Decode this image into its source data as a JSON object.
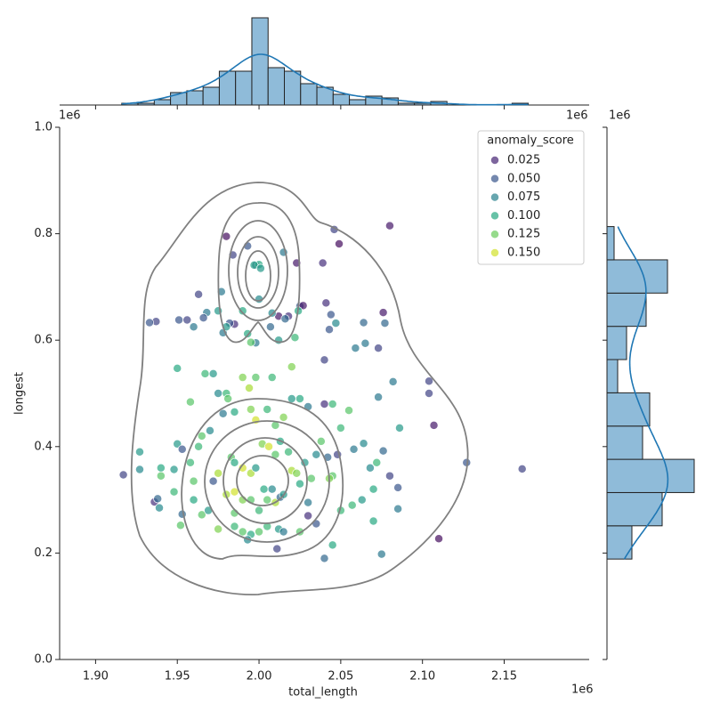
{
  "chart_data": {
    "type": "scatter",
    "xlabel": "total_length",
    "ylabel": "longest",
    "x_offset_label": "1e6",
    "y_offset_label": "1e6",
    "xlim": [
      1878000.0,
      2202000.0
    ],
    "ylim": [
      0,
      1000000.0
    ],
    "xticks": [
      {
        "value": 1900000.0,
        "label": "1.90"
      },
      {
        "value": 1950000.0,
        "label": "1.95"
      },
      {
        "value": 2000000.0,
        "label": "2.00"
      },
      {
        "value": 2050000.0,
        "label": "2.05"
      },
      {
        "value": 2100000.0,
        "label": "2.10"
      },
      {
        "value": 2150000.0,
        "label": "2.15"
      }
    ],
    "yticks": [
      {
        "value": 0,
        "label": "0.0"
      },
      {
        "value": 200000.0,
        "label": "0.2"
      },
      {
        "value": 400000.0,
        "label": "0.4"
      },
      {
        "value": 600000.0,
        "label": "0.6"
      },
      {
        "value": 800000.0,
        "label": "0.8"
      },
      {
        "value": 1000000.0,
        "label": "1.0"
      }
    ],
    "colormap": "viridis",
    "hue_lim": [
      0.01,
      0.16
    ],
    "legend": {
      "title": "anomaly_score",
      "loc": "upper right",
      "entries": [
        {
          "value": 0.025,
          "label": "0.025"
        },
        {
          "value": 0.05,
          "label": "0.050"
        },
        {
          "value": 0.075,
          "label": "0.075"
        },
        {
          "value": 0.1,
          "label": "0.100"
        },
        {
          "value": 0.125,
          "label": "0.125"
        },
        {
          "value": 0.15,
          "label": "0.150"
        }
      ]
    },
    "x": [
      1980000.0,
      1984000.0,
      1993000.0,
      1998000.0,
      2000000.0,
      1997000.0,
      2001000.0,
      2000000.0,
      2015000.0,
      2023000.0,
      2039000.0,
      2046000.0,
      2049000.0,
      2080000.0,
      1963000.0,
      1977000.0,
      1951000.0,
      1956000.0,
      1937000.0,
      1933000.0,
      1968000.0,
      1975000.0,
      1990000.0,
      1985000.0,
      1982000.0,
      1978000.0,
      1980000.0,
      2012000.0,
      2018000.0,
      2025000.0,
      2027000.0,
      2008000.0,
      2016000.0,
      2024000.0,
      2041000.0,
      2044000.0,
      2047000.0,
      2043000.0,
      2040000.0,
      2059000.0,
      2064000.0,
      2065000.0,
      2073000.0,
      2076000.0,
      2077000.0,
      2104000.0,
      2104000.0,
      2107000.0,
      2110000.0,
      2127000.0,
      2161000.0,
      1917000.0,
      1936000.0,
      1938000.0,
      1939000.0,
      1998000.0,
      1993000.0,
      1995000.0,
      2007000.0,
      2012000.0,
      2022000.0,
      2020000.0,
      1980000.0,
      1975000.0,
      1972000.0,
      1967000.0,
      1958000.0,
      1950000.0,
      1998000.0,
      2008000.0,
      1990000.0,
      1994000.0,
      1981000.0,
      1985000.0,
      1978000.0,
      1970000.0,
      1965000.0,
      1963000.0,
      1950000.0,
      1940000.0,
      1927000.0,
      1927000.0,
      1948000.0,
      1953000.0,
      1958000.0,
      1960000.0,
      1960000.0,
      1953000.0,
      1952000.0,
      1948000.0,
      1975000.0,
      1965000.0,
      1969000.0,
      1972000.0,
      1975000.0,
      1983000.0,
      1985000.0,
      1990000.0,
      1995000.0,
      1998000.0,
      2002000.0,
      2006000.0,
      2010000.0,
      2013000.0,
      2018000.0,
      2020000.0,
      2023000.0,
      2025000.0,
      2028000.0,
      2032000.0,
      2035000.0,
      2038000.0,
      2042000.0,
      2045000.0,
      2043000.0,
      1980000.0,
      1985000.0,
      1990000.0,
      1995000.0,
      2000000.0,
      2005000.0,
      2010000.0,
      2003000.0,
      2008000.0,
      2013000.0,
      2015000.0,
      1985000.0,
      1990000.0,
      1995000.0,
      1993000.0,
      2005000.0,
      2000000.0,
      2012000.0,
      2025000.0,
      2030000.0,
      2035000.0,
      2040000.0,
      2045000.0,
      2050000.0,
      2057000.0,
      2063000.0,
      2070000.0,
      2075000.0,
      2085000.0,
      2085000.0,
      2070000.0,
      2068000.0,
      2072000.0,
      2058000.0,
      2064000.0,
      2076000.0,
      2080000.0,
      2086000.0,
      2082000.0,
      2073000.0,
      2055000.0,
      2050000.0,
      2045000.0,
      2040000.0,
      2030000.0,
      2025000.0,
      2020000.0,
      2015000.0,
      2010000.0,
      2005000.0,
      1998000.0,
      1995000.0,
      2048000.0,
      2030000.0,
      2011000.0,
      2015000.0,
      1960000.0,
      1966000.0,
      1985000.0,
      1940000.0
    ],
    "y": [
      795000.0,
      760000.0,
      777000.0,
      741000.0,
      742000.0,
      741000.0,
      735000.0,
      677000.0,
      765000.0,
      745000.0,
      745000.0,
      808000.0,
      781000.0,
      815000.0,
      686000.0,
      691000.0,
      638000.0,
      638000.0,
      635000.0,
      633000.0,
      652000.0,
      655000.0,
      655000.0,
      630000.0,
      632000.0,
      614000.0,
      625000.0,
      645000.0,
      645000.0,
      664000.0,
      665000.0,
      651000.0,
      640000.0,
      655000.0,
      670000.0,
      648000.0,
      632000.0,
      620000.0,
      563000.0,
      585000.0,
      633000.0,
      594000.0,
      585000.0,
      652000.0,
      632000.0,
      523000.0,
      500000.0,
      440000.0,
      227000.0,
      370000.0,
      358000.0,
      347000.0,
      296000.0,
      302000.0,
      285000.0,
      595000.0,
      612000.0,
      596000.0,
      625000.0,
      600000.0,
      605000.0,
      550000.0,
      500000.0,
      500000.0,
      537000.0,
      537000.0,
      484000.0,
      547000.0,
      530000.0,
      530000.0,
      530000.0,
      510000.0,
      490000.0,
      465000.0,
      462000.0,
      430000.0,
      420000.0,
      400000.0,
      405000.0,
      360000.0,
      390000.0,
      357000.0,
      357000.0,
      395000.0,
      370000.0,
      335000.0,
      300000.0,
      273000.0,
      252000.0,
      315000.0,
      245000.0,
      272000.0,
      280000.0,
      335000.0,
      350000.0,
      380000.0,
      370000.0,
      360000.0,
      350000.0,
      360000.0,
      405000.0,
      400000.0,
      385000.0,
      410000.0,
      390000.0,
      355000.0,
      350000.0,
      330000.0,
      370000.0,
      340000.0,
      385000.0,
      410000.0,
      380000.0,
      345000.0,
      340000.0,
      310000.0,
      315000.0,
      300000.0,
      300000.0,
      280000.0,
      300000.0,
      295000.0,
      320000.0,
      320000.0,
      305000.0,
      310000.0,
      250000.0,
      240000.0,
      235000.0,
      225000.0,
      250000.0,
      240000.0,
      245000.0,
      240000.0,
      270000.0,
      255000.0,
      190000.0,
      215000.0,
      280000.0,
      290000.0,
      300000.0,
      260000.0,
      198000.0,
      283000.0,
      323000.0,
      320000.0,
      360000.0,
      370000.0,
      395000.0,
      406000.0,
      392000.0,
      345000.0,
      435000.0,
      522000.0,
      493000.0,
      468000.0,
      435000.0,
      480000.0,
      480000.0,
      475000.0,
      490000.0,
      490000.0,
      455000.0,
      440000.0,
      470000.0,
      450000.0,
      470000.0,
      385000.0,
      295000.0,
      208000.0,
      240000.0,
      625000.0,
      642000.0,
      275000.0,
      345000.0
    ],
    "hue": [
      0.015,
      0.04,
      0.05,
      0.06,
      0.1,
      0.095,
      0.09,
      0.08,
      0.07,
      0.02,
      0.03,
      0.04,
      0.015,
      0.02,
      0.04,
      0.07,
      0.05,
      0.04,
      0.04,
      0.05,
      0.07,
      0.09,
      0.1,
      0.03,
      0.05,
      0.07,
      0.09,
      0.02,
      0.03,
      0.05,
      0.02,
      0.08,
      0.06,
      0.1,
      0.03,
      0.05,
      0.08,
      0.05,
      0.04,
      0.07,
      0.06,
      0.07,
      0.04,
      0.02,
      0.06,
      0.04,
      0.04,
      0.02,
      0.015,
      0.05,
      0.04,
      0.04,
      0.03,
      0.06,
      0.08,
      0.07,
      0.1,
      0.12,
      0.06,
      0.09,
      0.11,
      0.13,
      0.11,
      0.08,
      0.09,
      0.11,
      0.12,
      0.1,
      0.12,
      0.11,
      0.13,
      0.14,
      0.12,
      0.1,
      0.07,
      0.08,
      0.12,
      0.11,
      0.09,
      0.1,
      0.09,
      0.08,
      0.09,
      0.05,
      0.11,
      0.12,
      0.1,
      0.06,
      0.12,
      0.11,
      0.13,
      0.12,
      0.09,
      0.05,
      0.14,
      0.12,
      0.1,
      0.15,
      0.14,
      0.09,
      0.13,
      0.15,
      0.12,
      0.1,
      0.11,
      0.14,
      0.13,
      0.1,
      0.09,
      0.12,
      0.08,
      0.12,
      0.06,
      0.12,
      0.13,
      0.14,
      0.15,
      0.13,
      0.12,
      0.11,
      0.12,
      0.14,
      0.1,
      0.08,
      0.06,
      0.09,
      0.11,
      0.12,
      0.1,
      0.08,
      0.11,
      0.12,
      0.09,
      0.12,
      0.03,
      0.05,
      0.06,
      0.1,
      0.11,
      0.11,
      0.09,
      0.1,
      0.07,
      0.07,
      0.05,
      0.1,
      0.08,
      0.11,
      0.07,
      0.08,
      0.06,
      0.04,
      0.09,
      0.07,
      0.07,
      0.12,
      0.11,
      0.11,
      0.03,
      0.07,
      0.1,
      0.09,
      0.13,
      0.12,
      0.11,
      0.15,
      0.13,
      0.04,
      0.07,
      0.04,
      0.07,
      0.07,
      0.05,
      0.12,
      0.12
    ],
    "marginal_x": {
      "type": "histogram",
      "color": "#8fbbd9",
      "kde": true,
      "kde_color": "#1f77b4",
      "count_lim": [
        0,
        50
      ],
      "bins": [
        1916000,
        1925950,
        1935900,
        1945850,
        1955800,
        1965750,
        1975700,
        1985650,
        1995600,
        2005550,
        2015500,
        2025450,
        2035400,
        2045350,
        2055300,
        2065250,
        2075200,
        2085150,
        2095100,
        2105050,
        2115000,
        2124950,
        2134900,
        2144850,
        2154800,
        2164750
      ],
      "counts": [
        1,
        1,
        3,
        7,
        8,
        10,
        19,
        19,
        49,
        21,
        19,
        12,
        10,
        6,
        3,
        5,
        4,
        1,
        1,
        2,
        0,
        0,
        0,
        0,
        1
      ]
    },
    "marginal_y": {
      "type": "histogram",
      "color": "#8fbbd9",
      "kde": true,
      "kde_color": "#1f77b4",
      "count_lim": [
        0,
        50
      ],
      "bins": [
        188700,
        251170,
        313640,
        376110,
        438580,
        501050,
        563520,
        625990,
        688460,
        750930,
        813400
      ],
      "counts": [
        14,
        31,
        49,
        20,
        24,
        6,
        11,
        22,
        34,
        4
      ]
    }
  }
}
